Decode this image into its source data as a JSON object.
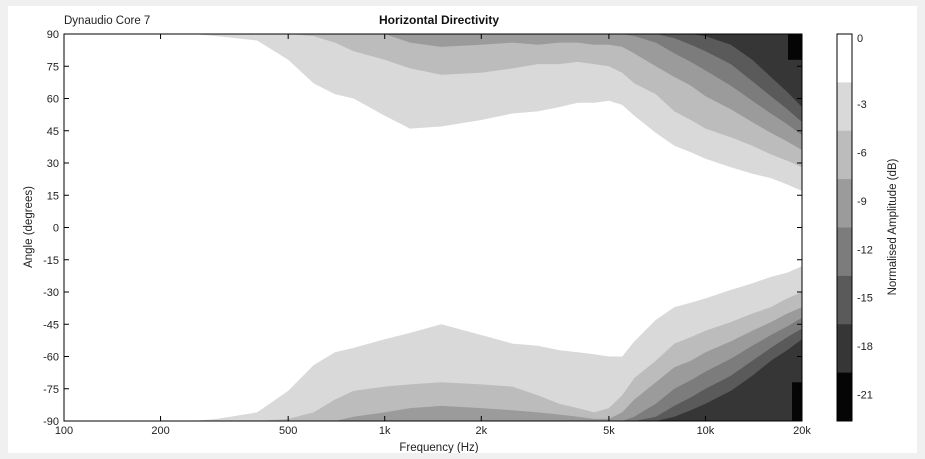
{
  "chart_data": {
    "type": "heatmap",
    "subtitle": "Dynaudio Core 7",
    "title": "Horizontal Directivity",
    "xlabel": "Frequency (Hz)",
    "ylabel": "Angle (degrees)",
    "colorbar_label": "Normalised Amplitude (dB)",
    "x_scale": "log",
    "xlim": [
      100,
      20000
    ],
    "ylim": [
      -90,
      90
    ],
    "x_ticks": [
      100,
      200,
      500,
      1000,
      2000,
      5000,
      10000,
      20000
    ],
    "x_tick_labels": [
      "100",
      "200",
      "500",
      "1k",
      "2k",
      "5k",
      "10k",
      "20k"
    ],
    "y_ticks": [
      90,
      75,
      60,
      45,
      30,
      15,
      0,
      -15,
      -30,
      -45,
      -60,
      -75,
      -90
    ],
    "y_tick_labels": [
      "90",
      "75",
      "60",
      "45",
      "30",
      "15",
      "0",
      "-15",
      "-30",
      "-45",
      "-60",
      "-75",
      "-90"
    ],
    "colorbar_ticks": [
      "0",
      "-3",
      "-6",
      "-9",
      "-12",
      "-15",
      "-18",
      "-21"
    ],
    "level_colors": [
      "#ffffff",
      "#d9d9d9",
      "#bcbcbc",
      "#9b9b9b",
      "#7c7c7c",
      "#5a5a5a",
      "#363636",
      "#050505"
    ],
    "contours_top": {
      "frequency_hz": [
        250,
        300,
        400,
        500,
        600,
        700,
        800,
        1000,
        1200,
        1500,
        2000,
        2500,
        3000,
        3500,
        4000,
        4500,
        5000,
        5500,
        6000,
        7000,
        8000,
        9000,
        10000,
        12000,
        14000,
        16000,
        18000,
        20000
      ],
      "angle_minus3dB": [
        90,
        89,
        87,
        78,
        67,
        62,
        60,
        52,
        46,
        47,
        50,
        53,
        54,
        56,
        58,
        58,
        59,
        57,
        52,
        44,
        38,
        35,
        32,
        28,
        25,
        23,
        20,
        17
      ],
      "angle_minus6dB": [
        90,
        90,
        90,
        90,
        89,
        86,
        82,
        78,
        74,
        71,
        72,
        74,
        76,
        76,
        77,
        76,
        75,
        72,
        67,
        62,
        54,
        50,
        46,
        42,
        38,
        34,
        31,
        28
      ],
      "angle_minus9dB": [
        90,
        90,
        90,
        90,
        90,
        90,
        90,
        90,
        86,
        84,
        85,
        86,
        85,
        86,
        86,
        85,
        85,
        84,
        81,
        75,
        70,
        66,
        61,
        55,
        49,
        44,
        40,
        36
      ],
      "angle_minus12dB": [
        90,
        90,
        90,
        90,
        90,
        90,
        90,
        90,
        90,
        90,
        90,
        90,
        90,
        90,
        90,
        90,
        90,
        90,
        89,
        86,
        81,
        77,
        73,
        66,
        59,
        53,
        48,
        43
      ],
      "angle_minus15dB": [
        90,
        90,
        90,
        90,
        90,
        90,
        90,
        90,
        90,
        90,
        90,
        90,
        90,
        90,
        90,
        90,
        90,
        90,
        90,
        90,
        88,
        85,
        82,
        76,
        68,
        61,
        55,
        49
      ],
      "angle_minus18dB": [
        90,
        90,
        90,
        90,
        90,
        90,
        90,
        90,
        90,
        90,
        90,
        90,
        90,
        90,
        90,
        90,
        90,
        90,
        90,
        90,
        90,
        90,
        89,
        85,
        78,
        70,
        63,
        56
      ]
    },
    "contours_bottom": {
      "frequency_hz": [
        250,
        300,
        400,
        500,
        600,
        700,
        800,
        1000,
        1200,
        1500,
        2000,
        2500,
        3000,
        3500,
        4000,
        4500,
        5000,
        5500,
        6000,
        7000,
        8000,
        9000,
        10000,
        12000,
        14000,
        16000,
        18000,
        20000
      ],
      "angle_minus3dB": [
        -90,
        -89,
        -86,
        -76,
        -64,
        -58,
        -56,
        -52,
        -49,
        -45,
        -50,
        -54,
        -55,
        -57,
        -58,
        -59,
        -60,
        -60,
        -53,
        -43,
        -37,
        -35,
        -33,
        -29,
        -26,
        -23,
        -21,
        -18
      ],
      "angle_minus6dB": [
        -90,
        -90,
        -90,
        -89,
        -86,
        -80,
        -76,
        -74,
        -73,
        -72,
        -73,
        -74,
        -78,
        -82,
        -84,
        -86,
        -84,
        -78,
        -70,
        -62,
        -54,
        -51,
        -48,
        -44,
        -40,
        -37,
        -33,
        -30
      ],
      "angle_minus9dB": [
        -90,
        -90,
        -90,
        -90,
        -90,
        -90,
        -88,
        -86,
        -84,
        -83,
        -84,
        -85,
        -86,
        -87,
        -88,
        -89,
        -89,
        -86,
        -80,
        -72,
        -65,
        -62,
        -58,
        -53,
        -48,
        -44,
        -40,
        -37
      ],
      "angle_minus12dB": [
        -90,
        -90,
        -90,
        -90,
        -90,
        -90,
        -90,
        -90,
        -90,
        -90,
        -90,
        -90,
        -90,
        -90,
        -90,
        -90,
        -90,
        -90,
        -88,
        -82,
        -75,
        -71,
        -67,
        -61,
        -55,
        -50,
        -46,
        -42
      ],
      "angle_minus15dB": [
        -90,
        -90,
        -90,
        -90,
        -90,
        -90,
        -90,
        -90,
        -90,
        -90,
        -90,
        -90,
        -90,
        -90,
        -90,
        -90,
        -90,
        -90,
        -90,
        -88,
        -83,
        -79,
        -75,
        -69,
        -62,
        -56,
        -51,
        -47
      ],
      "angle_minus18dB": [
        -90,
        -90,
        -90,
        -90,
        -90,
        -90,
        -90,
        -90,
        -90,
        -90,
        -90,
        -90,
        -90,
        -90,
        -90,
        -90,
        -90,
        -90,
        -90,
        -90,
        -88,
        -85,
        -82,
        -76,
        -69,
        -62,
        -57,
        -52
      ]
    },
    "grid": false
  }
}
